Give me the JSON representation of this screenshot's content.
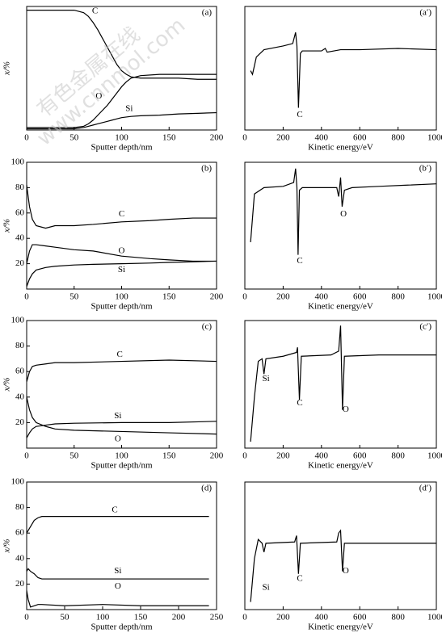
{
  "chart_data": [
    {
      "type": "line",
      "panel_label": "(a)",
      "xlabel": "Sputter depth/nm",
      "ylabel": "x/%",
      "xlim": [
        0,
        200
      ],
      "xticks": [
        0,
        50,
        100,
        150,
        200
      ],
      "ylim": [
        0,
        100
      ],
      "x": [
        0,
        20,
        40,
        50,
        60,
        65,
        70,
        75,
        80,
        85,
        90,
        95,
        100,
        105,
        110,
        120,
        140,
        160,
        180,
        200
      ],
      "series": [
        {
          "color": "#000000",
          "values": [
            97,
            97,
            97,
            97,
            95,
            92,
            87,
            81,
            74,
            67,
            60,
            53,
            48,
            45,
            43,
            42,
            42,
            42,
            41,
            41
          ]
        },
        {
          "color": "#000000",
          "values": [
            2,
            2,
            2,
            2,
            3,
            5,
            8,
            12,
            16,
            20,
            25,
            30,
            35,
            39,
            42,
            44,
            45,
            45,
            45,
            45
          ]
        },
        {
          "color": "#000000",
          "values": [
            1,
            1,
            1,
            1,
            2,
            3,
            4,
            5,
            6,
            7,
            8,
            9,
            10,
            10.5,
            11,
            11.5,
            12,
            13,
            13.5,
            14
          ]
        }
      ],
      "annotations": [
        {
          "text": "C",
          "x": 72,
          "y": 96
        },
        {
          "text": "O",
          "x": 76,
          "y": 27
        },
        {
          "text": "Si",
          "x": 108,
          "y": 17
        }
      ]
    },
    {
      "type": "line",
      "panel_label": "(a′)",
      "xlabel": "Kinetic energy/eV",
      "xlim": [
        0,
        1000
      ],
      "xticks": [
        0,
        200,
        400,
        600,
        800,
        1000
      ],
      "ylim": [
        0,
        100
      ],
      "x": [
        30,
        40,
        60,
        100,
        200,
        250,
        265,
        272,
        280,
        290,
        300,
        400,
        420,
        430,
        500,
        600,
        800,
        1000
      ],
      "series": [
        {
          "color": "#000000",
          "values": [
            48,
            45,
            59,
            65,
            68,
            70,
            79,
            68,
            18,
            62,
            64,
            64,
            66,
            63,
            65,
            65,
            66,
            65
          ]
        }
      ],
      "annotations": [
        {
          "text": "C",
          "x": 287,
          "y": 12
        }
      ]
    },
    {
      "type": "line",
      "panel_label": "(b)",
      "xlabel": "Sputter depth/nm",
      "ylabel": "x/%",
      "xlim": [
        0,
        200
      ],
      "xticks": [
        0,
        50,
        100,
        150,
        200
      ],
      "ylim": [
        0,
        100
      ],
      "yticks": [
        20,
        40,
        60,
        80,
        100
      ],
      "x": [
        0,
        3,
        6,
        10,
        20,
        30,
        50,
        70,
        100,
        130,
        150,
        175,
        200
      ],
      "series": [
        {
          "color": "#000000",
          "values": [
            82,
            65,
            55,
            50,
            48,
            50,
            50,
            51,
            53,
            54,
            55,
            56,
            56
          ]
        },
        {
          "color": "#000000",
          "values": [
            20,
            30,
            35,
            35,
            34,
            33,
            31,
            30,
            26,
            24,
            23,
            22,
            22
          ]
        },
        {
          "color": "#000000",
          "values": [
            2,
            8,
            12,
            15,
            17,
            18,
            19,
            19.5,
            20,
            20.5,
            21,
            21.5,
            22
          ]
        }
      ],
      "annotations": [
        {
          "text": "C",
          "x": 100,
          "y": 59
        },
        {
          "text": "O",
          "x": 100,
          "y": 30
        },
        {
          "text": "Si",
          "x": 100,
          "y": 15
        }
      ]
    },
    {
      "type": "line",
      "panel_label": "(b′)",
      "xlabel": "Kinetic energy/eV",
      "xlim": [
        0,
        1000
      ],
      "xticks": [
        0,
        200,
        400,
        600,
        800,
        1000
      ],
      "ylim": [
        0,
        100
      ],
      "x": [
        30,
        50,
        100,
        200,
        255,
        265,
        272,
        278,
        285,
        300,
        480,
        490,
        500,
        508,
        520,
        560,
        700,
        850,
        1000
      ],
      "series": [
        {
          "color": "#000000",
          "values": [
            37,
            75,
            80,
            81,
            84,
            95,
            80,
            27,
            78,
            80,
            80,
            73,
            88,
            65,
            78,
            80,
            81,
            82,
            83
          ]
        }
      ],
      "annotations": [
        {
          "text": "C",
          "x": 287,
          "y": 22
        },
        {
          "text": "O",
          "x": 515,
          "y": 59
        }
      ]
    },
    {
      "type": "line",
      "panel_label": "(c)",
      "xlabel": "Sputter depth/nm",
      "ylabel": "x/%",
      "xlim": [
        0,
        200
      ],
      "xticks": [
        0,
        50,
        100,
        150,
        200
      ],
      "ylim": [
        0,
        100
      ],
      "yticks": [
        20,
        40,
        60,
        80,
        100
      ],
      "x": [
        0,
        3,
        6,
        10,
        20,
        30,
        50,
        100,
        150,
        200
      ],
      "series": [
        {
          "color": "#000000",
          "values": [
            52,
            60,
            64,
            65,
            66,
            67,
            67,
            68,
            69,
            68
          ]
        },
        {
          "color": "#000000",
          "values": [
            8,
            12,
            15,
            17,
            18,
            19,
            19.5,
            20,
            20,
            21
          ]
        },
        {
          "color": "#000000",
          "values": [
            40,
            30,
            24,
            20,
            17,
            15,
            14,
            13,
            12,
            11
          ]
        }
      ],
      "annotations": [
        {
          "text": "C",
          "x": 98,
          "y": 73
        },
        {
          "text": "Si",
          "x": 96,
          "y": 25
        },
        {
          "text": "O",
          "x": 96,
          "y": 7
        }
      ]
    },
    {
      "type": "line",
      "panel_label": "(c′)",
      "xlabel": "Kinetic energy/eV",
      "xlim": [
        0,
        1000
      ],
      "xticks": [
        0,
        200,
        400,
        600,
        800,
        1000
      ],
      "ylim": [
        0,
        100
      ],
      "x": [
        30,
        50,
        70,
        90,
        100,
        110,
        200,
        270,
        275,
        285,
        295,
        450,
        490,
        500,
        510,
        520,
        700,
        1000
      ],
      "series": [
        {
          "color": "#000000",
          "values": [
            5,
            40,
            68,
            70,
            58,
            70,
            72,
            75,
            79,
            38,
            72,
            73,
            76,
            96,
            30,
            72,
            73,
            73
          ]
        }
      ],
      "annotations": [
        {
          "text": "Si",
          "x": 110,
          "y": 54
        },
        {
          "text": "C",
          "x": 287,
          "y": 35
        },
        {
          "text": "O",
          "x": 527,
          "y": 30
        }
      ]
    },
    {
      "type": "line",
      "panel_label": "(d)",
      "xlabel": "Sputter depth/nm",
      "ylabel": "x/%",
      "xlim": [
        0,
        250
      ],
      "xticks": [
        0,
        50,
        100,
        150,
        200,
        250
      ],
      "ylim": [
        0,
        100
      ],
      "yticks": [
        20,
        40,
        60,
        80,
        100
      ],
      "x": [
        0,
        2,
        5,
        10,
        15,
        20,
        50,
        100,
        150,
        200,
        240
      ],
      "series": [
        {
          "color": "#000000",
          "values": [
            60,
            62,
            65,
            70,
            72,
            73,
            73,
            73,
            73,
            73,
            73
          ]
        },
        {
          "color": "#000000",
          "values": [
            30,
            32,
            30,
            28,
            25,
            24,
            24,
            24,
            24,
            24,
            24
          ]
        },
        {
          "color": "#000000",
          "values": [
            15,
            8,
            2,
            3,
            4,
            4,
            3,
            4,
            3,
            3,
            3
          ]
        }
      ],
      "annotations": [
        {
          "text": "C",
          "x": 116,
          "y": 78
        },
        {
          "text": "Si",
          "x": 120,
          "y": 30
        },
        {
          "text": "O",
          "x": 120,
          "y": 18
        }
      ]
    },
    {
      "type": "line",
      "panel_label": "(d′)",
      "xlabel": "Kinetic energy/eV",
      "xlim": [
        0,
        1000
      ],
      "xticks": [
        0,
        200,
        400,
        600,
        800,
        1000
      ],
      "ylim": [
        0,
        100
      ],
      "x": [
        30,
        50,
        70,
        90,
        100,
        110,
        260,
        270,
        280,
        290,
        480,
        490,
        500,
        510,
        520,
        700,
        1000
      ],
      "series": [
        {
          "color": "#000000",
          "values": [
            6,
            40,
            55,
            52,
            45,
            52,
            53,
            58,
            28,
            52,
            53,
            60,
            62,
            30,
            52,
            52,
            52
          ]
        }
      ],
      "annotations": [
        {
          "text": "Si",
          "x": 110,
          "y": 17
        },
        {
          "text": "C",
          "x": 287,
          "y": 24
        },
        {
          "text": "O",
          "x": 527,
          "y": 30
        }
      ]
    }
  ],
  "watermark": [
    "有色金属在线",
    "www.cnnmol.com"
  ]
}
